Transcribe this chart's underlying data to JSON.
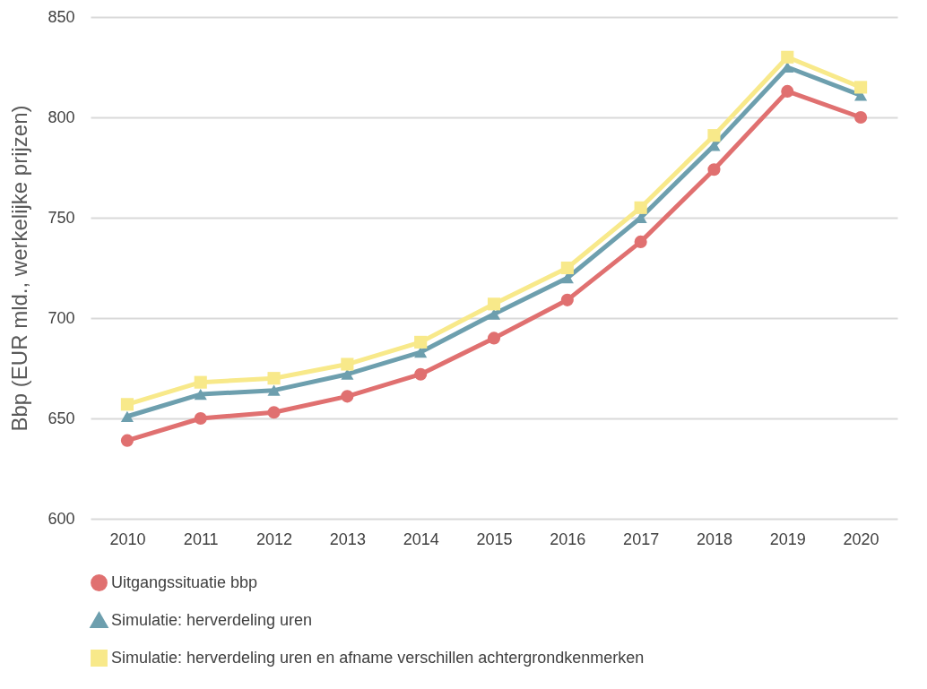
{
  "chart_data": {
    "type": "line",
    "ylabel": "Bbp (EUR mld., werkelijke prijzen)",
    "categories": [
      "2010",
      "2011",
      "2012",
      "2013",
      "2014",
      "2015",
      "2016",
      "2017",
      "2018",
      "2019",
      "2020"
    ],
    "series": [
      {
        "name": "Uitgangssituatie bbp",
        "color": "#e07070",
        "marker": "circle",
        "values": [
          639,
          650,
          653,
          661,
          672,
          690,
          709,
          738,
          774,
          813,
          800
        ]
      },
      {
        "name": "Simulatie: herverdeling uren",
        "color": "#6d9fae",
        "marker": "triangle",
        "values": [
          651,
          662,
          664,
          672,
          683,
          702,
          720,
          750,
          786,
          825,
          811
        ]
      },
      {
        "name": "Simulatie: herverdeling uren en afname verschillen achtergrondkenmerken",
        "color": "#f8e98a",
        "marker": "square",
        "values": [
          657,
          668,
          670,
          677,
          688,
          707,
          725,
          755,
          791,
          830,
          815
        ]
      }
    ],
    "ylim": [
      600,
      850
    ],
    "yticks": [
      600,
      650,
      700,
      750,
      800,
      850
    ],
    "grid": "y",
    "legend": "bottom",
    "line_style": "solid"
  }
}
